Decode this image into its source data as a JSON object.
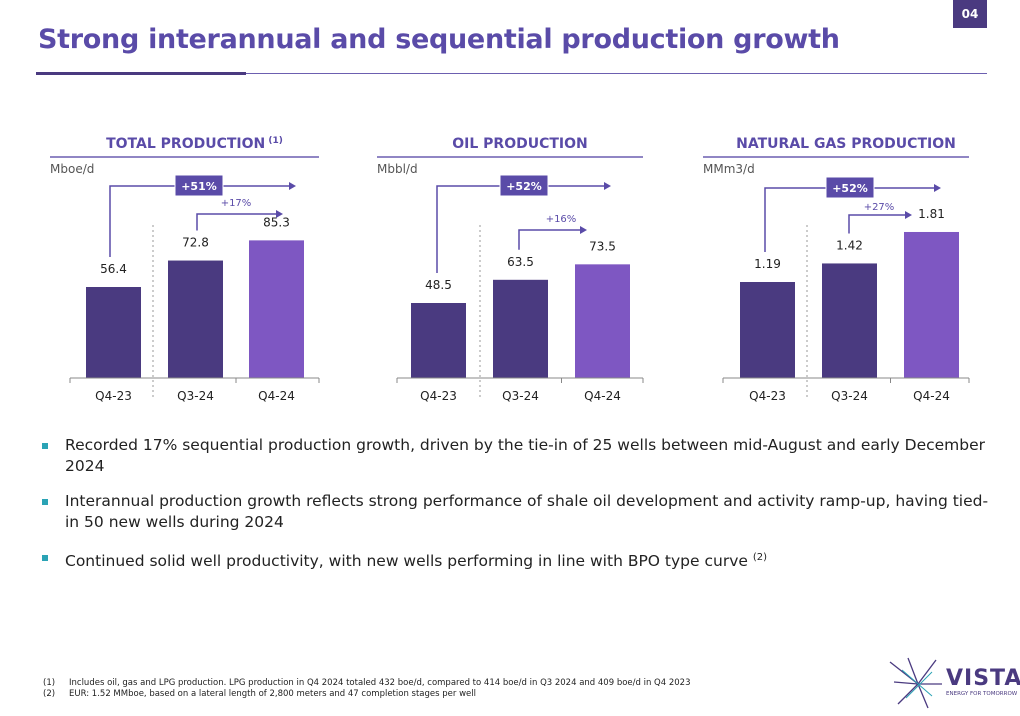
{
  "page_number": "04",
  "title": "Strong interannual and sequential production growth",
  "chart_data": [
    {
      "type": "bar",
      "title": "TOTAL PRODUCTION",
      "title_sup": "(1)",
      "ylabel": "Mboe/d",
      "categories": [
        "Q4-23",
        "Q3-24",
        "Q4-24"
      ],
      "values": [
        56.4,
        72.8,
        85.3
      ],
      "value_labels": [
        "56.4",
        "72.8",
        "85.3"
      ],
      "ylim": [
        0,
        100
      ],
      "colors": [
        "#4a3a80",
        "#4a3a80",
        "#7e57c2"
      ],
      "interannual_growth": "+51%",
      "sequential_growth": "+17%"
    },
    {
      "type": "bar",
      "title": "OIL PRODUCTION",
      "title_sup": "",
      "ylabel": "Mbbl/d",
      "categories": [
        "Q4-23",
        "Q3-24",
        "Q4-24"
      ],
      "values": [
        48.5,
        63.5,
        73.5
      ],
      "value_labels": [
        "48.5",
        "63.5",
        "73.5"
      ],
      "ylim": [
        0,
        100
      ],
      "colors": [
        "#4a3a80",
        "#4a3a80",
        "#7e57c2"
      ],
      "interannual_growth": "+52%",
      "sequential_growth": "+16%"
    },
    {
      "type": "bar",
      "title": "NATURAL GAS PRODUCTION",
      "title_sup": "",
      "ylabel": "MMm3/d",
      "categories": [
        "Q4-23",
        "Q3-24",
        "Q4-24"
      ],
      "values": [
        1.19,
        1.42,
        1.81
      ],
      "value_labels": [
        "1.19",
        "1.42",
        "1.81"
      ],
      "ylim": [
        0,
        2.2
      ],
      "colors": [
        "#4a3a80",
        "#4a3a80",
        "#7e57c2"
      ],
      "interannual_growth": "+52%",
      "sequential_growth": "+27%"
    }
  ],
  "bullets": [
    {
      "text": "Recorded 17% sequential production growth, driven by the tie-in of 25 wells between mid-August and early December 2024",
      "sup": ""
    },
    {
      "text": "Interannual production growth reflects strong performance of shale oil development and activity ramp-up, having tied-in 50 new wells during 2024",
      "sup": ""
    },
    {
      "text": "Continued solid well productivity, with new wells performing in line with BPO type curve ",
      "sup": "(2)"
    }
  ],
  "footnotes": [
    {
      "num": "(1)",
      "text": "Includes oil, gas and LPG production. LPG production in Q4 2024 totaled 432 boe/d, compared to 414 boe/d in Q3 2024 and 409 boe/d in Q4 2023"
    },
    {
      "num": "(2)",
      "text": "EUR: 1.52 MMboe, based on a lateral length of 2,800 meters  and 47 completion stages per well"
    }
  ],
  "logo": {
    "name": "VISTA",
    "tagline": "ENERGY FOR TOMORROW"
  }
}
